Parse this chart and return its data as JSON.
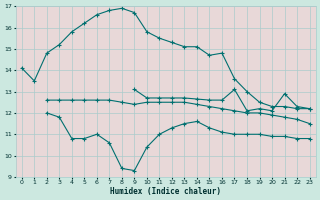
{
  "xlabel": "Humidex (Indice chaleur)",
  "xlim": [
    -0.5,
    23.5
  ],
  "ylim": [
    9,
    17
  ],
  "xticks": [
    0,
    1,
    2,
    3,
    4,
    5,
    6,
    7,
    8,
    9,
    10,
    11,
    12,
    13,
    14,
    15,
    16,
    17,
    18,
    19,
    20,
    21,
    22,
    23
  ],
  "yticks": [
    9,
    10,
    11,
    12,
    13,
    14,
    15,
    16,
    17
  ],
  "bg_color": "#cce8e0",
  "plot_bg_color": "#e8d8d8",
  "grid_color": "#aacccc",
  "line_color": "#007070",
  "line1_x": [
    0,
    1,
    2,
    3,
    4,
    5,
    6,
    7,
    8,
    9,
    10,
    11,
    12,
    13,
    14,
    15,
    16,
    17,
    18,
    19,
    20,
    21,
    22,
    23
  ],
  "line1_y": [
    14.1,
    13.5,
    14.8,
    15.2,
    15.8,
    16.2,
    16.6,
    16.8,
    16.9,
    16.7,
    15.8,
    15.5,
    15.3,
    15.1,
    15.1,
    14.7,
    14.8,
    13.6,
    13.0,
    12.5,
    12.3,
    12.3,
    12.2,
    12.2
  ],
  "line2_x": [
    2,
    3,
    4,
    5,
    6,
    7,
    8,
    9,
    10,
    11,
    12,
    13,
    14,
    15,
    16,
    17,
    18,
    19,
    20,
    21,
    22,
    23
  ],
  "line2_y": [
    12.0,
    11.8,
    10.8,
    10.8,
    11.0,
    10.6,
    9.4,
    9.3,
    10.4,
    11.0,
    11.3,
    11.5,
    11.6,
    11.3,
    11.1,
    11.0,
    11.0,
    11.0,
    10.9,
    10.9,
    10.8,
    10.8
  ],
  "line3_x": [
    2,
    3,
    4,
    5,
    6,
    7,
    8,
    9,
    10,
    11,
    12,
    13,
    14,
    15,
    16,
    17,
    18,
    19,
    20,
    21,
    22,
    23
  ],
  "line3_y": [
    12.6,
    12.6,
    12.6,
    12.6,
    12.6,
    12.6,
    12.5,
    12.4,
    12.5,
    12.5,
    12.5,
    12.5,
    12.4,
    12.3,
    12.2,
    12.1,
    12.0,
    12.0,
    11.9,
    11.8,
    11.7,
    11.5
  ],
  "line4_x": [
    9,
    10,
    11,
    12,
    13,
    14,
    15,
    16,
    17,
    18,
    19,
    20,
    21,
    22,
    23
  ],
  "line4_y": [
    13.1,
    12.7,
    12.7,
    12.7,
    12.7,
    12.65,
    12.6,
    12.6,
    13.1,
    12.1,
    12.2,
    12.1,
    12.9,
    12.3,
    12.2
  ]
}
